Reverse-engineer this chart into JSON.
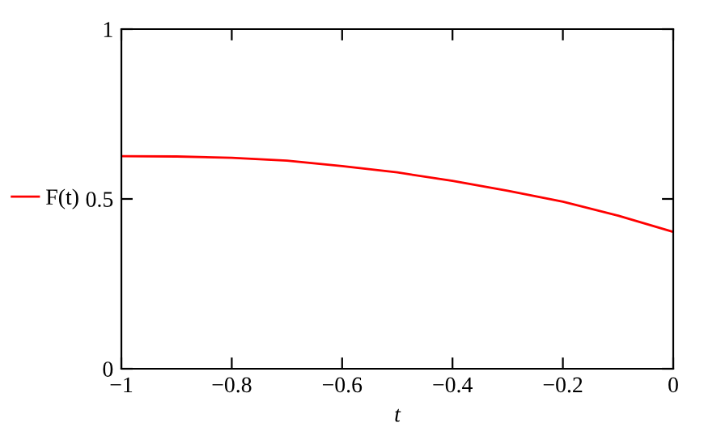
{
  "chart_data": {
    "type": "line",
    "xlabel": "t",
    "x": [
      -1,
      -0.9,
      -0.8,
      -0.7,
      -0.6,
      -0.5,
      -0.4,
      -0.3,
      -0.2,
      -0.1,
      0
    ],
    "series": [
      {
        "name": "F(t)",
        "color": "#ff0000",
        "values": [
          0.626,
          0.625,
          0.621,
          0.613,
          0.597,
          0.578,
          0.553,
          0.524,
          0.492,
          0.451,
          0.403
        ]
      }
    ],
    "xlim": [
      -1,
      0
    ],
    "ylim": [
      0,
      1
    ],
    "xticks": [
      -1,
      -0.8,
      -0.6,
      -0.4,
      -0.2,
      0
    ],
    "yticks": [
      0,
      0.5,
      1
    ],
    "grid": false,
    "legend": "left",
    "marker": "none",
    "line_style": "solid"
  }
}
